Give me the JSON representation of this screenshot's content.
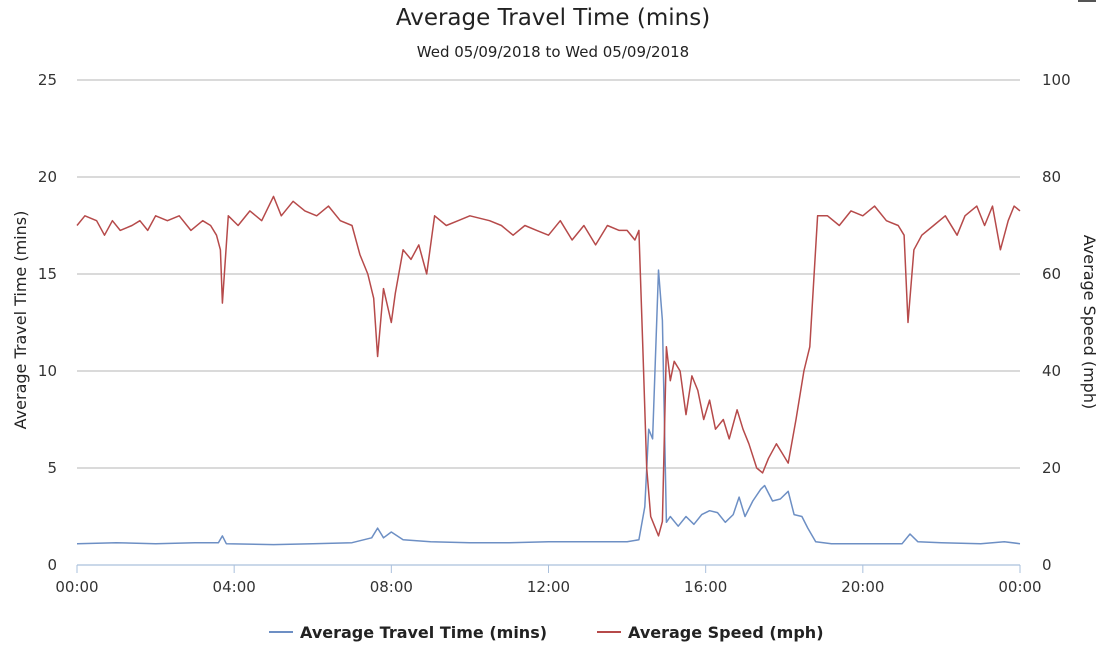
{
  "chart_data": {
    "type": "line",
    "title": "Average Travel Time (mins)",
    "subtitle": "Wed 05/09/2018 to Wed 05/09/2018",
    "xlabel": "",
    "ylabel_left": "Average Travel Time (mins)",
    "ylabel_right": "Average Speed (mph)",
    "x_ticks": [
      "00:00",
      "04:00",
      "08:00",
      "12:00",
      "16:00",
      "20:00",
      "00:00"
    ],
    "x_range_hours": [
      0,
      24
    ],
    "ylim_left": [
      0,
      25
    ],
    "y_ticks_left": [
      "0",
      "5",
      "10",
      "15",
      "20",
      "25"
    ],
    "ylim_right": [
      0,
      100
    ],
    "y_ticks_right": [
      "0",
      "20",
      "40",
      "60",
      "80",
      "100"
    ],
    "grid": true,
    "legend_position": "bottom",
    "series": [
      {
        "name": "Average Travel Time (mins)",
        "axis": "left",
        "color": "#6d8fc4",
        "points": [
          [
            0,
            1.1
          ],
          [
            1,
            1.15
          ],
          [
            2,
            1.1
          ],
          [
            3,
            1.15
          ],
          [
            3.6,
            1.15
          ],
          [
            3.7,
            1.5
          ],
          [
            3.8,
            1.1
          ],
          [
            5,
            1.05
          ],
          [
            6,
            1.1
          ],
          [
            7,
            1.15
          ],
          [
            7.5,
            1.4
          ],
          [
            7.65,
            1.9
          ],
          [
            7.8,
            1.4
          ],
          [
            8.0,
            1.7
          ],
          [
            8.3,
            1.3
          ],
          [
            9,
            1.2
          ],
          [
            10,
            1.15
          ],
          [
            11,
            1.15
          ],
          [
            12,
            1.2
          ],
          [
            13,
            1.2
          ],
          [
            14,
            1.2
          ],
          [
            14.3,
            1.3
          ],
          [
            14.45,
            3.0
          ],
          [
            14.55,
            7.0
          ],
          [
            14.65,
            6.5
          ],
          [
            14.8,
            15.2
          ],
          [
            14.9,
            12.6
          ],
          [
            15.0,
            2.2
          ],
          [
            15.1,
            2.5
          ],
          [
            15.3,
            2.0
          ],
          [
            15.5,
            2.5
          ],
          [
            15.7,
            2.1
          ],
          [
            15.9,
            2.6
          ],
          [
            16.1,
            2.8
          ],
          [
            16.3,
            2.7
          ],
          [
            16.5,
            2.2
          ],
          [
            16.7,
            2.6
          ],
          [
            16.85,
            3.5
          ],
          [
            17.0,
            2.5
          ],
          [
            17.2,
            3.3
          ],
          [
            17.4,
            3.9
          ],
          [
            17.5,
            4.1
          ],
          [
            17.7,
            3.3
          ],
          [
            17.9,
            3.4
          ],
          [
            18.1,
            3.8
          ],
          [
            18.25,
            2.6
          ],
          [
            18.45,
            2.5
          ],
          [
            18.6,
            1.9
          ],
          [
            18.8,
            1.2
          ],
          [
            19.2,
            1.1
          ],
          [
            20,
            1.1
          ],
          [
            21,
            1.1
          ],
          [
            21.2,
            1.6
          ],
          [
            21.4,
            1.2
          ],
          [
            22,
            1.15
          ],
          [
            23,
            1.1
          ],
          [
            23.6,
            1.2
          ],
          [
            24,
            1.1
          ]
        ]
      },
      {
        "name": "Average Speed (mph)",
        "axis": "right",
        "color": "#b64a4a",
        "points": [
          [
            0,
            70
          ],
          [
            0.2,
            72
          ],
          [
            0.5,
            71
          ],
          [
            0.7,
            68
          ],
          [
            0.9,
            71
          ],
          [
            1.1,
            69
          ],
          [
            1.4,
            70
          ],
          [
            1.6,
            71
          ],
          [
            1.8,
            69
          ],
          [
            2.0,
            72
          ],
          [
            2.3,
            71
          ],
          [
            2.6,
            72
          ],
          [
            2.9,
            69
          ],
          [
            3.2,
            71
          ],
          [
            3.4,
            70
          ],
          [
            3.55,
            68
          ],
          [
            3.65,
            65
          ],
          [
            3.7,
            54
          ],
          [
            3.85,
            72
          ],
          [
            4.1,
            70
          ],
          [
            4.4,
            73
          ],
          [
            4.7,
            71
          ],
          [
            5.0,
            76
          ],
          [
            5.2,
            72
          ],
          [
            5.5,
            75
          ],
          [
            5.8,
            73
          ],
          [
            6.1,
            72
          ],
          [
            6.4,
            74
          ],
          [
            6.7,
            71
          ],
          [
            7.0,
            70
          ],
          [
            7.2,
            64
          ],
          [
            7.4,
            60
          ],
          [
            7.55,
            55
          ],
          [
            7.65,
            43
          ],
          [
            7.8,
            57
          ],
          [
            8.0,
            50
          ],
          [
            8.1,
            56
          ],
          [
            8.3,
            65
          ],
          [
            8.5,
            63
          ],
          [
            8.7,
            66
          ],
          [
            8.9,
            60
          ],
          [
            9.1,
            72
          ],
          [
            9.4,
            70
          ],
          [
            9.7,
            71
          ],
          [
            10.0,
            72
          ],
          [
            10.5,
            71
          ],
          [
            10.8,
            70
          ],
          [
            11.1,
            68
          ],
          [
            11.4,
            70
          ],
          [
            11.7,
            69
          ],
          [
            12.0,
            68
          ],
          [
            12.3,
            71
          ],
          [
            12.6,
            67
          ],
          [
            12.9,
            70
          ],
          [
            13.2,
            66
          ],
          [
            13.5,
            70
          ],
          [
            13.8,
            69
          ],
          [
            14.0,
            69
          ],
          [
            14.2,
            67
          ],
          [
            14.3,
            69
          ],
          [
            14.4,
            45
          ],
          [
            14.5,
            20
          ],
          [
            14.6,
            10
          ],
          [
            14.7,
            8
          ],
          [
            14.8,
            6
          ],
          [
            14.9,
            9
          ],
          [
            15.0,
            45
          ],
          [
            15.1,
            38
          ],
          [
            15.2,
            42
          ],
          [
            15.35,
            40
          ],
          [
            15.5,
            31
          ],
          [
            15.65,
            39
          ],
          [
            15.8,
            36
          ],
          [
            15.95,
            30
          ],
          [
            16.1,
            34
          ],
          [
            16.25,
            28
          ],
          [
            16.45,
            30
          ],
          [
            16.6,
            26
          ],
          [
            16.8,
            32
          ],
          [
            16.95,
            28
          ],
          [
            17.1,
            25
          ],
          [
            17.3,
            20
          ],
          [
            17.45,
            19
          ],
          [
            17.6,
            22
          ],
          [
            17.8,
            25
          ],
          [
            17.95,
            23
          ],
          [
            18.1,
            21
          ],
          [
            18.3,
            30
          ],
          [
            18.5,
            40
          ],
          [
            18.65,
            45
          ],
          [
            18.85,
            72
          ],
          [
            19.1,
            72
          ],
          [
            19.4,
            70
          ],
          [
            19.7,
            73
          ],
          [
            20.0,
            72
          ],
          [
            20.3,
            74
          ],
          [
            20.6,
            71
          ],
          [
            20.9,
            70
          ],
          [
            21.05,
            68
          ],
          [
            21.15,
            50
          ],
          [
            21.3,
            65
          ],
          [
            21.5,
            68
          ],
          [
            21.8,
            70
          ],
          [
            22.1,
            72
          ],
          [
            22.4,
            68
          ],
          [
            22.6,
            72
          ],
          [
            22.9,
            74
          ],
          [
            23.1,
            70
          ],
          [
            23.3,
            74
          ],
          [
            23.5,
            65
          ],
          [
            23.7,
            71
          ],
          [
            23.85,
            74
          ],
          [
            24,
            73
          ]
        ]
      }
    ]
  }
}
